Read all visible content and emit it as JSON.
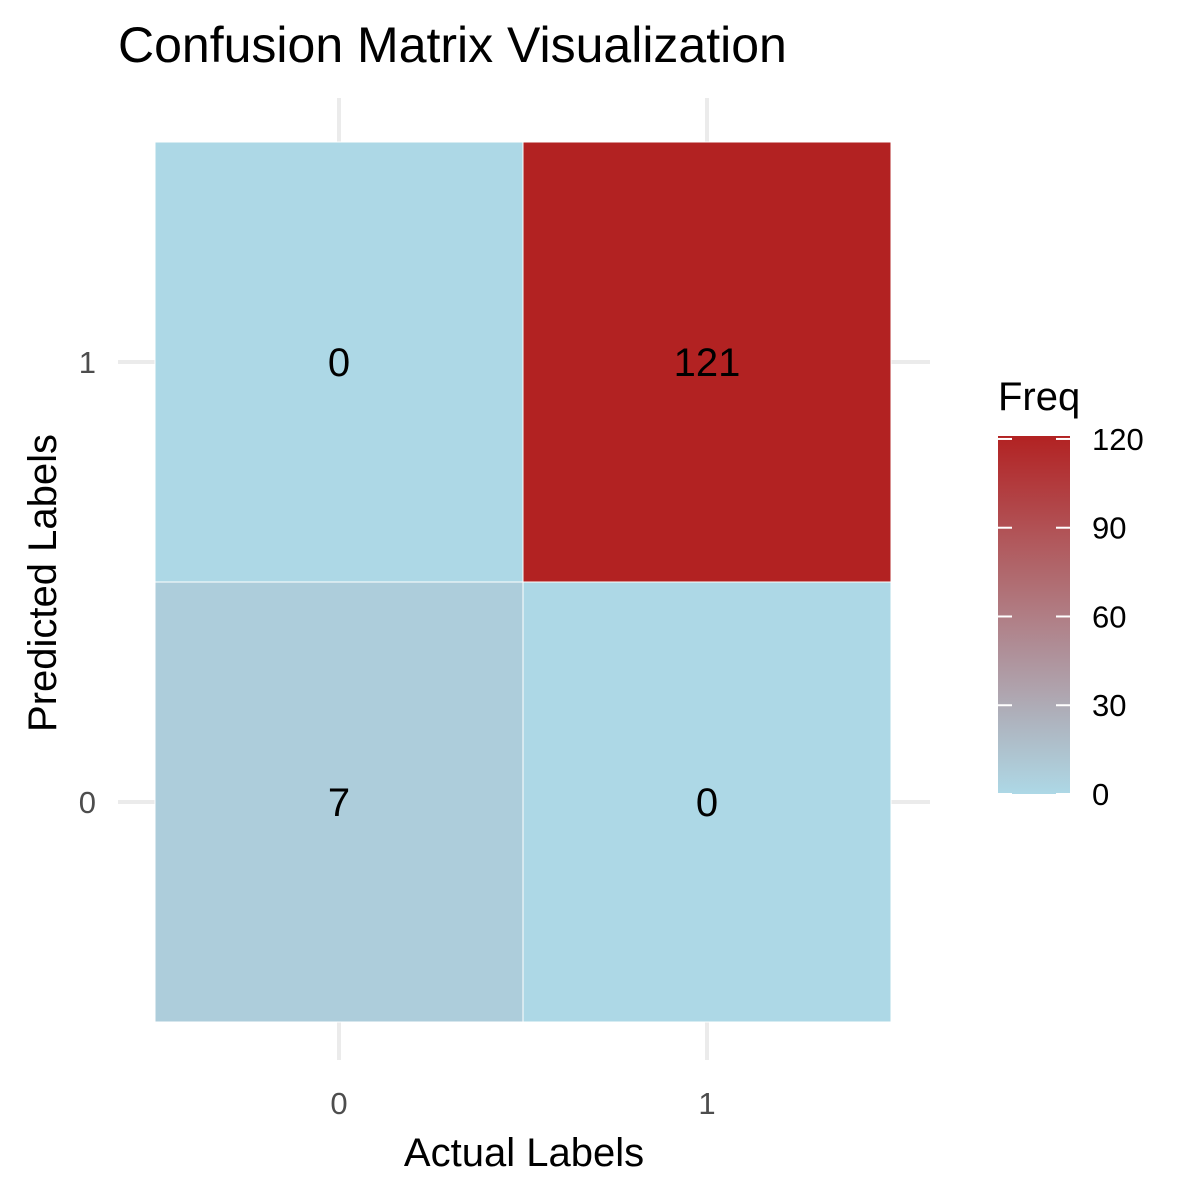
{
  "chart_data": {
    "type": "heatmap",
    "title": "Confusion Matrix Visualization",
    "xlabel": "Actual Labels",
    "ylabel": "Predicted Labels",
    "x_categories": [
      "0",
      "1"
    ],
    "y_categories": [
      "0",
      "1"
    ],
    "cells": [
      {
        "actual": "0",
        "predicted": "1",
        "value": 0,
        "label": "0"
      },
      {
        "actual": "1",
        "predicted": "1",
        "value": 121,
        "label": "121"
      },
      {
        "actual": "0",
        "predicted": "0",
        "value": 7,
        "label": "7"
      },
      {
        "actual": "1",
        "predicted": "0",
        "value": 0,
        "label": "0"
      }
    ],
    "legend": {
      "title": "Freq",
      "position": "right",
      "ticks": [
        0,
        30,
        60,
        90,
        120
      ],
      "tick_labels": [
        "0",
        "30",
        "60",
        "90",
        "120"
      ],
      "range": [
        0,
        121
      ],
      "low_color": "#ADD8E6",
      "high_color": "#B22222"
    },
    "grid": true
  }
}
